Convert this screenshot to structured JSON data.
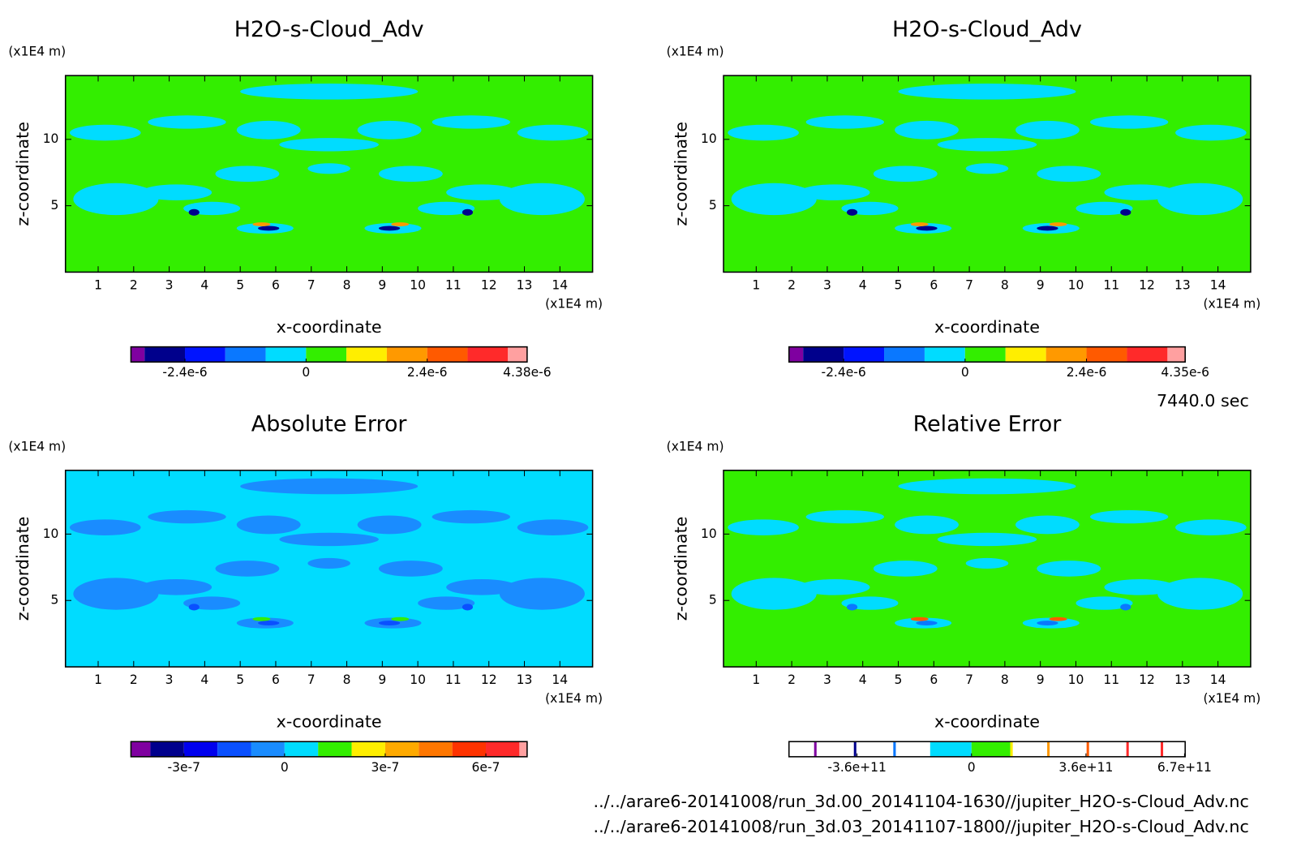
{
  "chart_data": [
    {
      "type": "contour",
      "title": "H2O-s-Cloud_Adv",
      "xlabel": "x-coordinate",
      "ylabel": "z-coordinate",
      "x_unit": "(x1E4 m)",
      "y_unit": "(x1E4 m)",
      "xlim": [
        0.08,
        14.92
      ],
      "ylim": [
        0,
        14.8
      ],
      "xticks": [
        1,
        2,
        3,
        4,
        5,
        6,
        7,
        8,
        9,
        10,
        11,
        12,
        13,
        14
      ],
      "yticks": [
        5,
        10
      ],
      "colorbar": {
        "lim": [
          -3.47e-06,
          4.38e-06
        ],
        "levels": [
          -3.2e-06,
          -2.4e-06,
          -1.6e-06,
          -8e-07,
          0,
          8e-07,
          1.6e-06,
          2.4e-06,
          3.2e-06,
          4e-06
        ],
        "colors": [
          "#7f00a0",
          "#00008c",
          "#0014ff",
          "#0a78ff",
          "#00dcff",
          "#33ee00",
          "#ffee00",
          "#ff9900",
          "#ff5a00",
          "#ff2a2a",
          "#ffa0a0"
        ],
        "ticks": [
          {
            "value": -2.4e-06,
            "label": "-2.4e-6"
          },
          0,
          {
            "value": 2.4e-06,
            "label": "2.4e-6"
          },
          {
            "value": 4.38e-06,
            "label": "4.38e-6"
          }
        ]
      }
    },
    {
      "type": "contour",
      "title": "H2O-s-Cloud_Adv",
      "xlabel": "x-coordinate",
      "ylabel": "z-coordinate",
      "x_unit": "(x1E4 m)",
      "y_unit": "(x1E4 m)",
      "xlim": [
        0.08,
        14.92
      ],
      "ylim": [
        0,
        14.8
      ],
      "xticks": [
        1,
        2,
        3,
        4,
        5,
        6,
        7,
        8,
        9,
        10,
        11,
        12,
        13,
        14
      ],
      "yticks": [
        5,
        10
      ],
      "colorbar": {
        "lim": [
          -3.48e-06,
          4.35e-06
        ],
        "levels": [
          -3.2e-06,
          -2.4e-06,
          -1.6e-06,
          -8e-07,
          0,
          8e-07,
          1.6e-06,
          2.4e-06,
          3.2e-06,
          4e-06
        ],
        "colors": [
          "#7f00a0",
          "#00008c",
          "#0014ff",
          "#0a78ff",
          "#00dcff",
          "#33ee00",
          "#ffee00",
          "#ff9900",
          "#ff5a00",
          "#ff2a2a",
          "#ffa0a0"
        ],
        "ticks": [
          {
            "value": -2.4e-06,
            "label": "-2.4e-6"
          },
          0,
          {
            "value": 2.4e-06,
            "label": "2.4e-6"
          },
          {
            "value": 4.35e-06,
            "label": "4.35e-6"
          }
        ]
      }
    },
    {
      "type": "contour",
      "title": "Absolute Error",
      "xlabel": "x-coordinate",
      "ylabel": "z-coordinate",
      "x_unit": "(x1E4 m)",
      "y_unit": "(x1E4 m)",
      "xlim": [
        0.08,
        14.92
      ],
      "ylim": [
        0,
        14.8
      ],
      "xticks": [
        1,
        2,
        3,
        4,
        5,
        6,
        7,
        8,
        9,
        10,
        11,
        12,
        13,
        14
      ],
      "yticks": [
        5,
        10
      ],
      "colorbar": {
        "lim": [
          -4.58e-07,
          7.23e-07
        ],
        "levels": [
          -4e-07,
          -3e-07,
          -2e-07,
          -1e-07,
          0,
          1e-07,
          2e-07,
          3e-07,
          4e-07,
          5e-07,
          6e-07,
          7e-07
        ],
        "colors": [
          "#7f00a0",
          "#00008c",
          "#0000ee",
          "#0a50ff",
          "#1a8cff",
          "#00dcff",
          "#33ee00",
          "#ffee00",
          "#ffaa00",
          "#ff7700",
          "#ff3300",
          "#ff2a2a",
          "#ffa0a0"
        ],
        "ticks": [
          {
            "value": -3e-07,
            "label": "-3e-7"
          },
          0,
          {
            "value": 3e-07,
            "label": "3e-7"
          },
          {
            "value": 6e-07,
            "label": "6e-7"
          }
        ]
      }
    },
    {
      "type": "contour",
      "title": "Relative Error",
      "xlabel": "x-coordinate",
      "ylabel": "z-coordinate",
      "x_unit": "(x1E4 m)",
      "y_unit": "(x1E4 m)",
      "xlim": [
        0.08,
        14.92
      ],
      "ylim": [
        0,
        14.8
      ],
      "xticks": [
        1,
        2,
        3,
        4,
        5,
        6,
        7,
        8,
        9,
        10,
        11,
        12,
        13,
        14
      ],
      "yticks": [
        5,
        10
      ],
      "colorbar": {
        "lim": [
          -574000000000.0,
          672000000000.0
        ],
        "levels": [
          -495000000000.0,
          -487000000000.0,
          -370000000000.0,
          -362000000000.0,
          -246000000000.0,
          -238000000000.0,
          -130000000000.0,
          0,
          122000000000.0,
          130000000000.0,
          238000000000.0,
          246000000000.0,
          362000000000.0,
          370000000000.0,
          487000000000.0,
          495000000000.0,
          595000000000.0,
          603000000000.0
        ],
        "colors": [
          "#ffffff",
          "#7f00a0",
          "#ffffff",
          "#00008c",
          "#ffffff",
          "#0a78ff",
          "#ffffff",
          "#00dcff",
          "#33ee00",
          "#ffee00",
          "#ffffff",
          "#ff9900",
          "#ffffff",
          "#ff5a00",
          "#ffffff",
          "#ff2a2a",
          "#ffffff",
          "#ff2a2a",
          "#ffffff"
        ],
        "ticks": [
          {
            "value": -360000000000.0,
            "label": "-3.6e+11"
          },
          0,
          {
            "value": 360000000000.0,
            "label": "3.6e+11"
          },
          {
            "value": 670000000000.0,
            "label": "6.7e+11"
          }
        ]
      }
    }
  ],
  "time_label": "7440.0 sec",
  "files": [
    "../../arare6-20141008/run_3d.00_20141104-1630//jupiter_H2O-s-Cloud_Adv.nc",
    "../../arare6-20141008/run_3d.03_20141107-1800//jupiter_H2O-s-Cloud_Adv.nc"
  ]
}
